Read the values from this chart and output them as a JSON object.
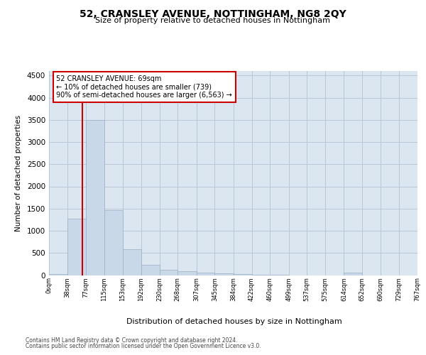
{
  "title": "52, CRANSLEY AVENUE, NOTTINGHAM, NG8 2QY",
  "subtitle": "Size of property relative to detached houses in Nottingham",
  "xlabel": "Distribution of detached houses by size in Nottingham",
  "ylabel": "Number of detached properties",
  "footnote1": "Contains HM Land Registry data © Crown copyright and database right 2024.",
  "footnote2": "Contains public sector information licensed under the Open Government Licence v3.0.",
  "property_size": 69,
  "annotation_text": "52 CRANSLEY AVENUE: 69sqm\n← 10% of detached houses are smaller (739)\n90% of semi-detached houses are larger (6,563) →",
  "bin_edges": [
    0,
    38,
    77,
    115,
    153,
    192,
    230,
    268,
    307,
    345,
    384,
    422,
    460,
    499,
    537,
    575,
    614,
    652,
    690,
    729,
    767
  ],
  "bar_heights": [
    30,
    1270,
    3500,
    1460,
    590,
    230,
    120,
    85,
    60,
    40,
    20,
    10,
    5,
    0,
    0,
    0,
    50,
    0,
    0,
    0
  ],
  "bar_color": "#c8d8e8",
  "bar_edge_color": "#9ab0c4",
  "grid_color": "#b8c8d8",
  "bg_color": "#dce6f0",
  "line_color": "#cc0000",
  "annotation_box_color": "#cc0000",
  "ylim": [
    0,
    4600
  ],
  "yticks": [
    0,
    500,
    1000,
    1500,
    2000,
    2500,
    3000,
    3500,
    4000,
    4500
  ]
}
